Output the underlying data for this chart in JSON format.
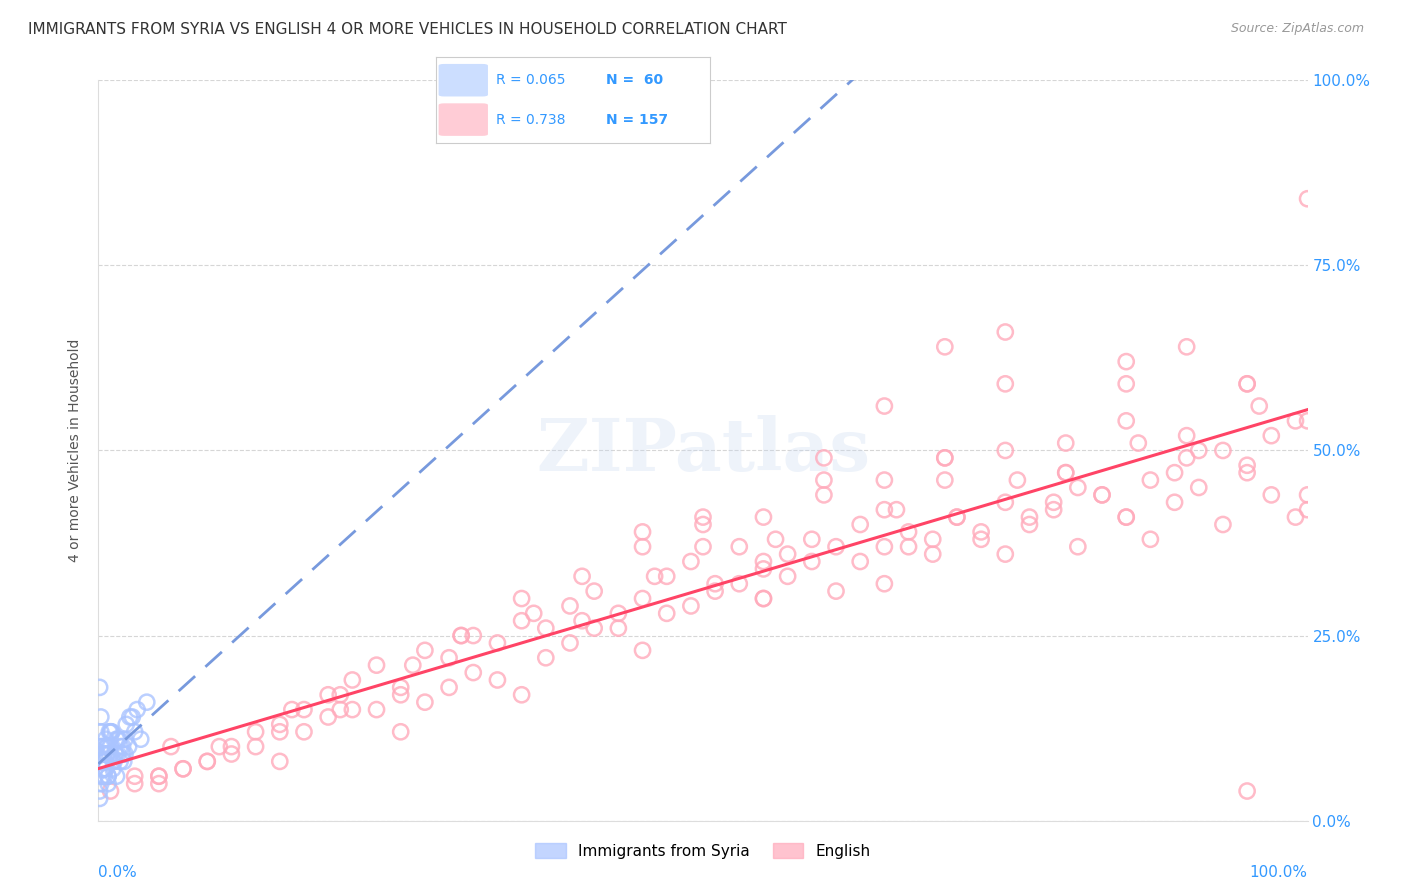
{
  "title": "IMMIGRANTS FROM SYRIA VS ENGLISH 4 OR MORE VEHICLES IN HOUSEHOLD CORRELATION CHART",
  "source": "Source: ZipAtlas.com",
  "ylabel": "4 or more Vehicles in Household",
  "ytick_labels": [
    "0.0%",
    "25.0%",
    "50.0%",
    "75.0%",
    "100.0%"
  ],
  "ytick_values": [
    0,
    25,
    50,
    75,
    100
  ],
  "legend_entries": [
    {
      "label": "Immigrants from Syria",
      "R": "0.065",
      "N": "60",
      "color": "#aac8ff"
    },
    {
      "label": "English",
      "R": "0.738",
      "N": "157",
      "color": "#ffaabb"
    }
  ],
  "watermark": "ZIPatlas",
  "background_color": "#ffffff",
  "syria_scatter_color": "#aac4ff",
  "english_scatter_color": "#ffaabb",
  "syria_line_color": "#7799dd",
  "english_line_color": "#ff4466",
  "grid_color": "#cccccc",
  "title_color": "#333333",
  "axis_label_color": "#3399ff",
  "syria_points_x": [
    0.2,
    0.3,
    0.5,
    0.7,
    0.8,
    1.0,
    1.2,
    1.5,
    1.8,
    2.0,
    2.2,
    2.5,
    0.1,
    0.2,
    0.4,
    0.6,
    0.9,
    1.1,
    1.3,
    1.6,
    2.8,
    3.5,
    0.1,
    0.3,
    0.5,
    0.2,
    0.4,
    0.6,
    1.4,
    0.8,
    1.0,
    2.1,
    0.3,
    0.7,
    0.9,
    1.7,
    2.3,
    0.5,
    1.2,
    1.8,
    3.0,
    4.0,
    0.2,
    0.6,
    0.4,
    1.5,
    2.0,
    0.3,
    0.8,
    1.0,
    1.4,
    2.6,
    0.1,
    0.5,
    0.7,
    1.6,
    2.2,
    0.4,
    0.9,
    3.2
  ],
  "syria_points_y": [
    12,
    10,
    8,
    9,
    6,
    10,
    7,
    6,
    8,
    9,
    11,
    10,
    18,
    14,
    9,
    7,
    10,
    12,
    8,
    9,
    14,
    11,
    4,
    8,
    6,
    10,
    7,
    11,
    9,
    5,
    12,
    8,
    6,
    10,
    9,
    11,
    13,
    7,
    8,
    10,
    12,
    16,
    5,
    9,
    7,
    11,
    10,
    8,
    6,
    12,
    9,
    14,
    3,
    7,
    10,
    11,
    9,
    8,
    12,
    15
  ],
  "english_points_x": [
    1,
    3,
    5,
    7,
    9,
    11,
    13,
    15,
    17,
    19,
    21,
    23,
    25,
    27,
    29,
    31,
    33,
    35,
    37,
    39,
    41,
    43,
    45,
    47,
    49,
    51,
    53,
    55,
    57,
    59,
    61,
    63,
    65,
    67,
    69,
    71,
    73,
    75,
    77,
    79,
    81,
    83,
    85,
    87,
    89,
    91,
    93,
    95,
    97,
    99,
    5,
    15,
    25,
    35,
    45,
    55,
    65,
    75,
    85,
    95,
    3,
    13,
    23,
    33,
    43,
    53,
    63,
    73,
    83,
    93,
    7,
    17,
    27,
    37,
    47,
    57,
    67,
    77,
    87,
    97,
    9,
    19,
    29,
    39,
    49,
    59,
    69,
    79,
    89,
    99,
    11,
    21,
    31,
    41,
    51,
    61,
    71,
    81,
    91,
    6,
    16,
    26,
    36,
    46,
    56,
    66,
    76,
    86,
    96,
    50,
    60,
    70,
    80,
    90,
    100,
    40,
    30,
    20,
    45,
    55,
    65,
    75,
    85,
    95,
    10,
    50,
    60,
    70,
    80,
    90,
    100,
    85,
    70,
    55,
    40,
    25,
    15,
    5,
    95,
    80,
    65,
    50,
    35,
    20,
    100,
    75,
    60,
    45,
    30,
    95,
    85,
    55,
    75,
    65,
    90,
    100,
    70
  ],
  "english_points_y": [
    4,
    5,
    6,
    7,
    8,
    10,
    12,
    13,
    15,
    17,
    19,
    21,
    18,
    23,
    22,
    25,
    24,
    27,
    26,
    29,
    31,
    28,
    30,
    33,
    35,
    32,
    37,
    34,
    36,
    38,
    31,
    40,
    37,
    39,
    36,
    41,
    38,
    43,
    40,
    42,
    37,
    44,
    41,
    38,
    43,
    45,
    40,
    47,
    44,
    41,
    5,
    8,
    12,
    17,
    23,
    30,
    32,
    36,
    41,
    48,
    6,
    10,
    15,
    19,
    26,
    32,
    35,
    39,
    44,
    50,
    7,
    12,
    16,
    22,
    28,
    33,
    37,
    41,
    46,
    52,
    8,
    14,
    18,
    24,
    29,
    35,
    38,
    43,
    47,
    54,
    9,
    15,
    20,
    26,
    31,
    37,
    41,
    45,
    50,
    10,
    15,
    21,
    28,
    33,
    38,
    42,
    46,
    51,
    56,
    40,
    44,
    46,
    47,
    49,
    42,
    33,
    25,
    17,
    37,
    41,
    46,
    50,
    54,
    59,
    10,
    41,
    46,
    49,
    51,
    52,
    54,
    59,
    64,
    30,
    27,
    17,
    12,
    6,
    4,
    47,
    42,
    37,
    30,
    15,
    44,
    59,
    49,
    39,
    25,
    59,
    62,
    35,
    66,
    56,
    64,
    84,
    49
  ]
}
